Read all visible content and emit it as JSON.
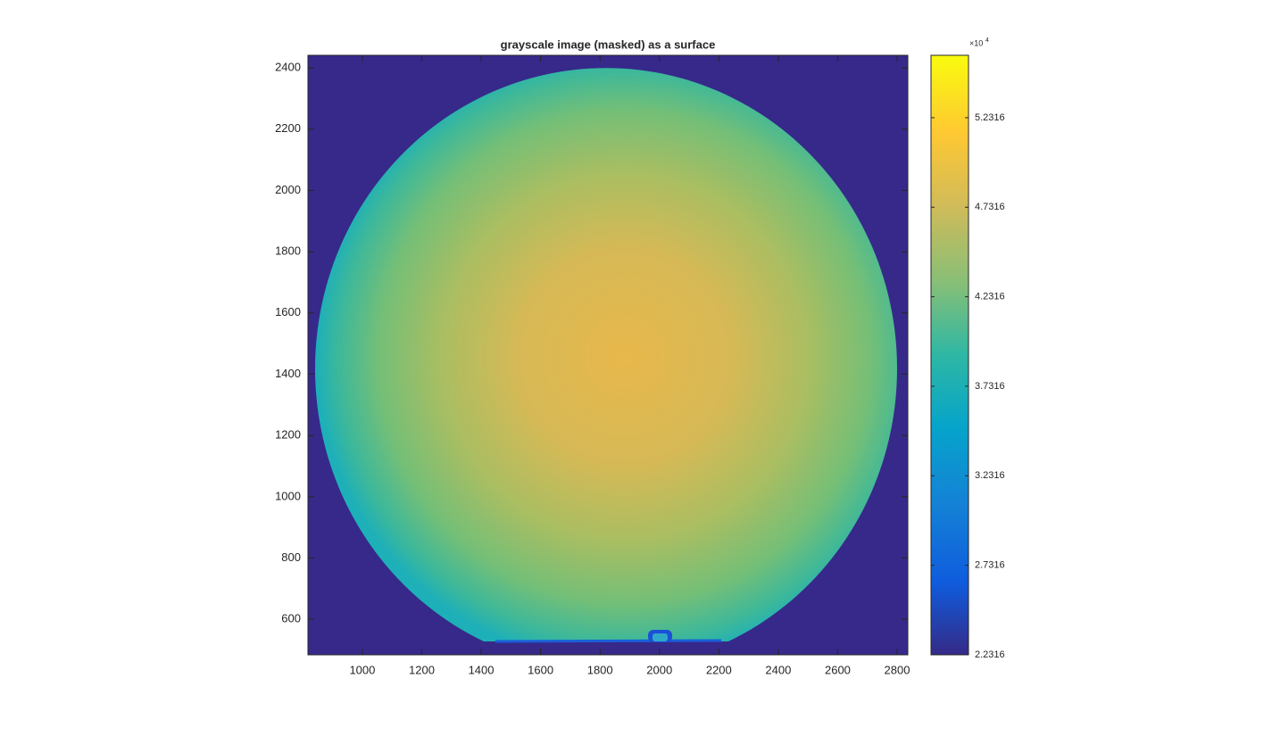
{
  "chart_data": {
    "type": "image",
    "title": "grayscale image (masked) as a surface",
    "xlim": [
      817,
      2836
    ],
    "xticks": [
      1000,
      1200,
      1400,
      1600,
      1800,
      2000,
      2200,
      2400,
      2600,
      2800
    ],
    "ylim": [
      484,
      2441
    ],
    "yticks": [
      600,
      800,
      1000,
      1200,
      1400,
      1600,
      1800,
      2000,
      2200,
      2400
    ],
    "colorbar": {
      "clim": [
        2.2316,
        5.58
      ],
      "ticks": [
        2.2316,
        2.7316,
        3.2316,
        3.7316,
        4.2316,
        4.7316,
        5.2316
      ],
      "multiplier_base": "×10",
      "multiplier_exponent": "4"
    }
  }
}
